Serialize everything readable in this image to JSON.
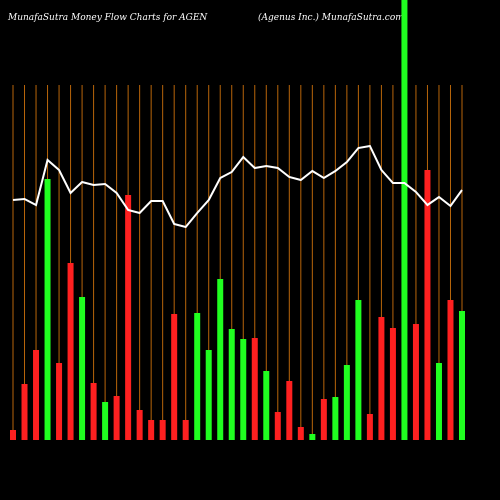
{
  "chart_data": {
    "type": "bar",
    "title": "MunafaSutra  Money Flow  Charts for AGEN",
    "subtitle": "(Agenus Inc.) MunafaSutra.com",
    "values": [
      10,
      56,
      90,
      261,
      77,
      177,
      143,
      57,
      38,
      44,
      245,
      30,
      20,
      20,
      126,
      20,
      127,
      90,
      161,
      111,
      101,
      102,
      69,
      28,
      59,
      13,
      6,
      41,
      43,
      75,
      140,
      26,
      123,
      112,
      440,
      116,
      270,
      77,
      140,
      129
    ],
    "colors": [
      "#ff2020",
      "#ff2020",
      "#ff2020",
      "#20ff20",
      "#ff2020",
      "#ff2020",
      "#20ff20",
      "#ff2020",
      "#20ff20",
      "#ff2020",
      "#ff2020",
      "#ff2020",
      "#ff2020",
      "#ff2020",
      "#ff2020",
      "#ff2020",
      "#20ff20",
      "#20ff20",
      "#20ff20",
      "#20ff20",
      "#20ff20",
      "#ff2020",
      "#20ff20",
      "#ff2020",
      "#ff2020",
      "#ff2020",
      "#20ff20",
      "#ff2020",
      "#20ff20",
      "#20ff20",
      "#20ff20",
      "#ff2020",
      "#ff2020",
      "#ff2020",
      "#20ff20",
      "#ff2020",
      "#ff2020",
      "#20ff20",
      "#ff2020",
      "#20ff20"
    ],
    "line": {
      "color": "#ffffff",
      "values": [
        240,
        241,
        235,
        280,
        270,
        247,
        258,
        255,
        256,
        247,
        230,
        227,
        239,
        239,
        216,
        213,
        227,
        240,
        262,
        268,
        283,
        272,
        274,
        272,
        263,
        260,
        269,
        262,
        269,
        278,
        292,
        294,
        270,
        257,
        257,
        248,
        235,
        243,
        234,
        250
      ]
    },
    "ylim": [
      0,
      440
    ]
  }
}
